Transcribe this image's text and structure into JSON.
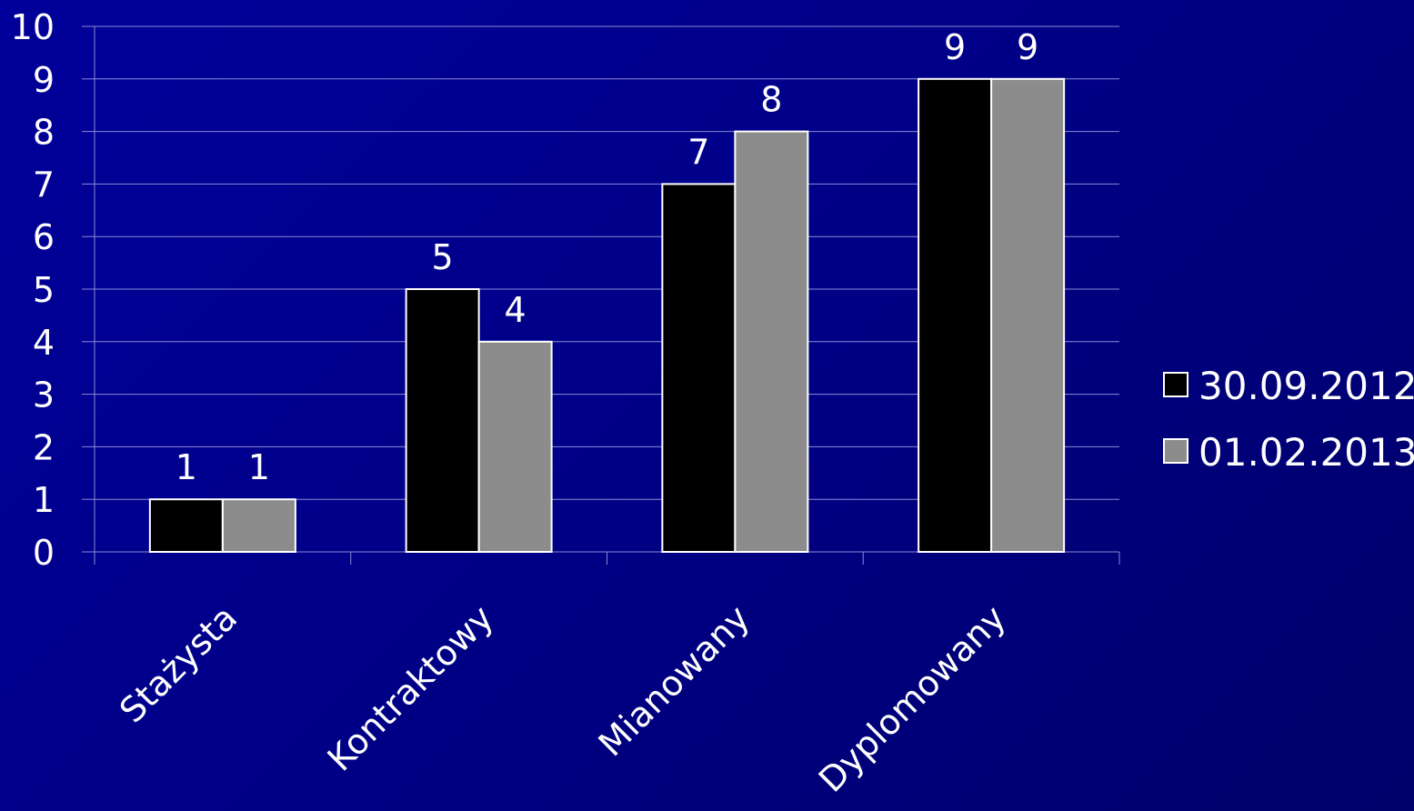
{
  "chart_data": {
    "type": "bar",
    "categories": [
      "Stażysta",
      "Kontraktowy",
      "Mianowany",
      "Dyplomowany"
    ],
    "series": [
      {
        "name": "30.09.2012",
        "values": [
          1,
          5,
          7,
          9
        ],
        "color": "#000000"
      },
      {
        "name": "01.02.2013",
        "values": [
          1,
          4,
          8,
          9
        ],
        "color": "#8c8c8c"
      }
    ],
    "y_ticks": [
      "0",
      "1",
      "2",
      "3",
      "4",
      "5",
      "6",
      "7",
      "8",
      "9",
      "10"
    ],
    "ylim": [
      0,
      10
    ],
    "grid": true,
    "legend_position": "right",
    "title": "",
    "xlabel": "",
    "ylabel": ""
  }
}
